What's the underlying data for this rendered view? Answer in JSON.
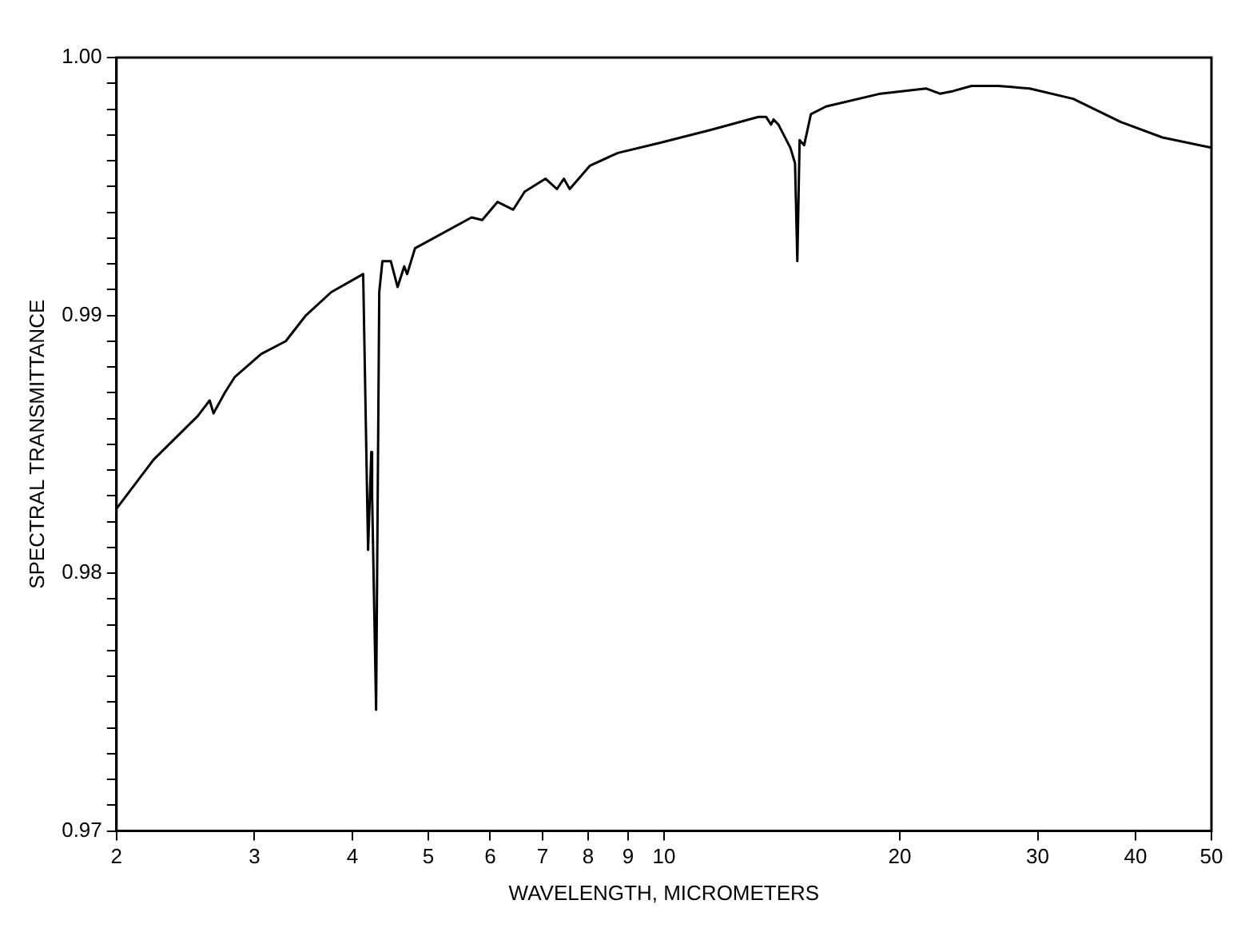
{
  "chart_data": {
    "type": "line",
    "xlabel": "WAVELENGTH, MICROMETERS",
    "ylabel": "SPECTRAL TRANSMITTANCE",
    "log": "x",
    "grid": false,
    "legend": false,
    "marker": "none",
    "line_style": "solid",
    "xlim": [
      2,
      50
    ],
    "xticks": [
      2,
      3,
      4,
      5,
      6,
      7,
      8,
      9,
      10,
      20,
      30,
      40,
      50
    ],
    "ylim": [
      0.97,
      1
    ],
    "yticks": [
      0.97,
      {
        "value": 0.971,
        "label": null
      },
      {
        "value": 0.972,
        "label": null
      },
      {
        "value": 0.973,
        "label": null
      },
      {
        "value": 0.974,
        "label": null
      },
      {
        "value": 0.975,
        "label": null
      },
      {
        "value": 0.976,
        "label": null
      },
      {
        "value": 0.977,
        "label": null
      },
      {
        "value": 0.978,
        "label": null
      },
      {
        "value": 0.979,
        "label": null
      },
      0.98,
      {
        "value": 0.981,
        "label": null
      },
      {
        "value": 0.982,
        "label": null
      },
      {
        "value": 0.983,
        "label": null
      },
      {
        "value": 0.984,
        "label": null
      },
      {
        "value": 0.985,
        "label": null
      },
      {
        "value": 0.986,
        "label": null
      },
      {
        "value": 0.987,
        "label": null
      },
      {
        "value": 0.988,
        "label": null
      },
      {
        "value": 0.989,
        "label": null
      },
      0.99,
      {
        "value": 0.991,
        "label": null
      },
      {
        "value": 0.992,
        "label": null
      },
      {
        "value": 0.993,
        "label": null
      },
      {
        "value": 0.994,
        "label": null
      },
      {
        "value": 0.995,
        "label": null
      },
      {
        "value": 0.996,
        "label": null
      },
      {
        "value": 0.997,
        "label": null
      },
      {
        "value": 0.998,
        "label": null
      },
      {
        "value": 0.999,
        "label": null
      },
      {
        "value": 1,
        "label": "1.00"
      }
    ],
    "series": [
      {
        "color": "#000000",
        "x": [
          2.0,
          2.23,
          2.54,
          2.63,
          2.66,
          2.75,
          2.83,
          3.06,
          3.29,
          3.49,
          3.76,
          4.13,
          4.19,
          4.23,
          4.24,
          4.29,
          4.33,
          4.37,
          4.48,
          4.57,
          4.66,
          4.7,
          4.81,
          5.68,
          5.86,
          6.13,
          6.42,
          6.64,
          7.06,
          7.3,
          7.45,
          7.58,
          8.04,
          8.73,
          9.9,
          11.5,
          13.2,
          13.5,
          13.7,
          13.8,
          14.0,
          14.5,
          14.7,
          14.8,
          14.9,
          15.1,
          15.4,
          16.1,
          18.9,
          21.6,
          22.5,
          23.4,
          24.7,
          26.7,
          29.3,
          33.3,
          38.3,
          43.3,
          50
        ],
        "values": [
          0.9825,
          0.9844,
          0.9861,
          0.9867,
          0.9862,
          0.987,
          0.9876,
          0.9885,
          0.989,
          0.99,
          0.9909,
          0.9916,
          0.9809,
          0.9847,
          0.983,
          0.9747,
          0.9909,
          0.9921,
          0.9921,
          0.9911,
          0.9919,
          0.9916,
          0.9926,
          0.9938,
          0.9937,
          0.9944,
          0.9941,
          0.9948,
          0.9953,
          0.9949,
          0.9953,
          0.9949,
          0.9958,
          0.9963,
          0.9967,
          0.9972,
          0.9977,
          0.9977,
          0.9974,
          0.9976,
          0.9974,
          0.9965,
          0.9959,
          0.9921,
          0.9968,
          0.9966,
          0.9978,
          0.9981,
          0.9986,
          0.9988,
          0.9986,
          0.9987,
          0.9989,
          0.9989,
          0.9988,
          0.9984,
          0.9975,
          0.9969,
          0.9965
        ]
      }
    ]
  }
}
